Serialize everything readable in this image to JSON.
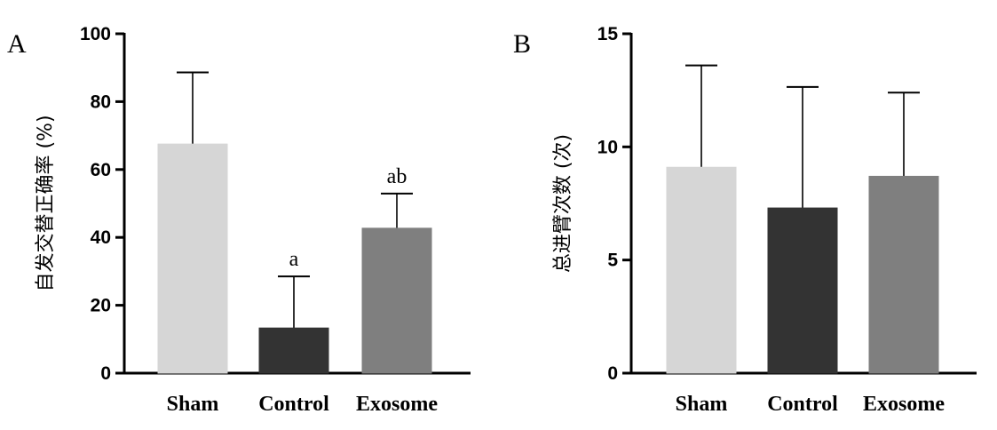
{
  "chart_data": [
    {
      "panel": "A",
      "type": "bar",
      "categories": [
        "Sham",
        "Control",
        "Exosome"
      ],
      "values": [
        67.5,
        13.3,
        42.7
      ],
      "errors": [
        21.1,
        15.2,
        10.2
      ],
      "colors": [
        "#d6d6d6",
        "#333333",
        "#7f7f7f"
      ],
      "annotations": [
        "",
        "a",
        "ab"
      ],
      "ylabel": "自发交替正确率 (%)",
      "xlabel": "",
      "ylim": [
        0,
        100
      ],
      "yticks": [
        0,
        20,
        40,
        60,
        80,
        100
      ]
    },
    {
      "panel": "B",
      "type": "bar",
      "categories": [
        "Sham",
        "Control",
        "Exosome"
      ],
      "values": [
        9.1,
        7.3,
        8.7
      ],
      "errors": [
        4.5,
        5.35,
        3.7
      ],
      "colors": [
        "#d6d6d6",
        "#333333",
        "#7f7f7f"
      ],
      "annotations": [
        "",
        "",
        ""
      ],
      "ylabel": "总进臂次数 (次)",
      "xlabel": "",
      "ylim": [
        0,
        15
      ],
      "yticks": [
        0,
        5,
        10,
        15
      ]
    }
  ]
}
